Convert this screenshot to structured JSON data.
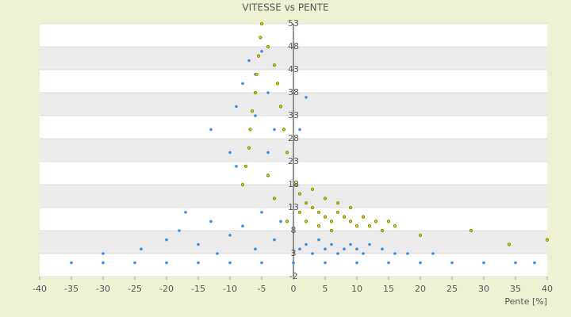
{
  "chart_data": {
    "type": "scatter",
    "title": "VITESSE vs PENTE",
    "x_label": "Pente [%]",
    "xlim": [
      -40,
      40
    ],
    "xticks": [
      -40,
      -35,
      -30,
      -25,
      -20,
      -15,
      -10,
      -5,
      0,
      5,
      10,
      15,
      20,
      25,
      30,
      35,
      40
    ],
    "ylim": [
      -2,
      53
    ],
    "yticks": [
      -2,
      3,
      8,
      13,
      18,
      23,
      28,
      33,
      38,
      43,
      48,
      53
    ],
    "grid": true,
    "series": [
      {
        "color": "#3a8ee0",
        "x": [
          -35,
          -30,
          -25,
          -20,
          -15,
          -10,
          -5,
          0,
          5,
          10,
          15,
          20,
          25,
          30,
          35,
          38,
          -30,
          -24,
          -20,
          -18,
          -15,
          -13,
          -12,
          -10,
          -8,
          -6,
          -5,
          -3,
          -2,
          -17,
          1,
          2,
          3,
          4,
          5,
          6,
          7,
          8,
          9,
          10,
          11,
          12,
          14,
          16,
          18,
          22,
          -13,
          -10,
          -9,
          -8,
          -7,
          -6,
          -5,
          -4,
          -6,
          -3,
          -4,
          -2,
          -9,
          2,
          1
        ],
        "values": [
          1,
          1,
          1,
          1,
          1,
          1,
          1,
          1,
          1,
          1,
          1,
          1,
          1,
          1,
          1,
          1,
          3,
          4,
          6,
          8,
          5,
          10,
          3,
          7,
          9,
          4,
          12,
          6,
          10,
          12,
          4,
          5,
          3,
          6,
          4,
          5,
          3,
          4,
          5,
          4,
          3,
          5,
          4,
          3,
          3,
          3,
          30,
          25,
          35,
          40,
          45,
          42,
          47,
          38,
          33,
          30,
          25,
          35,
          22,
          37,
          30
        ]
      },
      {
        "color": "#c9c400",
        "x": [
          -8,
          -7.5,
          -7,
          -6.8,
          -6.5,
          -6,
          -5.8,
          -5.5,
          -5.2,
          -5,
          -4,
          -3,
          -2.5,
          -2,
          -1.5,
          -1,
          -4,
          -3,
          0.5,
          1,
          2,
          3,
          4,
          5,
          6,
          7,
          8,
          9,
          10,
          12,
          14,
          15,
          3,
          5,
          7,
          9,
          2,
          4,
          6,
          11,
          13,
          16,
          1,
          -1,
          20,
          28,
          40,
          34
        ],
        "values": [
          18,
          22,
          26,
          30,
          34,
          38,
          42,
          46,
          50,
          53,
          48,
          44,
          40,
          35,
          30,
          25,
          20,
          15,
          18,
          16,
          14,
          13,
          12,
          11,
          10,
          12,
          11,
          10,
          9,
          9,
          8,
          10,
          17,
          15,
          14,
          13,
          10,
          9,
          8,
          11,
          10,
          9,
          12,
          10,
          7,
          8,
          6,
          5
        ]
      }
    ]
  }
}
